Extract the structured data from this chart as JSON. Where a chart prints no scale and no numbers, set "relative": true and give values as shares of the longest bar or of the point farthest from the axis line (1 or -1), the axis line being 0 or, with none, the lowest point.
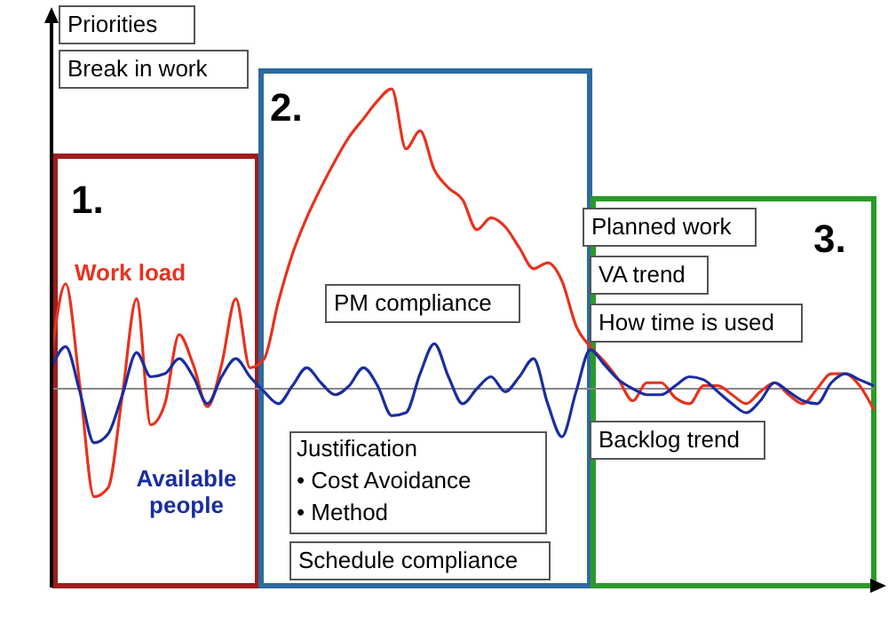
{
  "chart_data": {
    "type": "line",
    "relative": true,
    "categories": [
      null,
      null,
      null,
      null,
      null,
      null,
      null,
      null,
      null,
      null,
      null,
      null,
      null,
      null,
      null,
      null,
      null,
      null,
      null,
      null,
      null,
      null,
      null,
      null,
      null,
      null,
      null,
      null,
      null,
      null,
      null,
      null,
      null,
      null,
      null,
      null,
      null,
      null,
      null,
      null,
      null,
      null,
      null,
      null,
      null,
      null,
      null,
      null,
      null,
      null,
      null,
      null,
      null,
      null,
      null,
      null,
      null,
      null,
      null
    ],
    "series": [
      {
        "name": "Work load",
        "color": "#e8321e",
        "values": [
          0.11,
          0.35,
          0.01,
          -0.36,
          -0.33,
          -0.02,
          0.3,
          -0.12,
          -0.05,
          0.18,
          0.08,
          -0.06,
          0.08,
          0.3,
          0.07,
          0.1,
          0.29,
          0.45,
          0.57,
          0.67,
          0.76,
          0.84,
          0.9,
          0.96,
          1,
          0.8,
          0.86,
          0.73,
          0.67,
          0.63,
          0.53,
          0.57,
          0.54,
          0.47,
          0.4,
          0.42,
          0.36,
          0.21,
          0.14,
          0.09,
          0.03,
          -0.04,
          0.02,
          0.02,
          -0.03,
          -0.05,
          0.01,
          0.01,
          -0.02,
          -0.05,
          -0.01,
          0.02,
          -0.02,
          -0.05,
          0,
          0.05,
          0.05,
          0.01,
          -0.07
        ]
      },
      {
        "name": "Available people",
        "color": "#1a2da0",
        "values": [
          0.07,
          0.14,
          -0.01,
          -0.18,
          -0.15,
          -0.02,
          0.12,
          0.04,
          0.05,
          0.1,
          0.04,
          -0.05,
          0.04,
          0.1,
          0.04,
          -0.01,
          -0.05,
          0.01,
          0.07,
          0.02,
          -0.02,
          0.01,
          0.07,
          0.01,
          -0.09,
          -0.08,
          0.05,
          0.15,
          0.04,
          -0.05,
          0,
          0.04,
          -0.01,
          0.04,
          0.1,
          -0.05,
          -0.16,
          -0.01,
          0.13,
          0.08,
          0.03,
          0,
          -0.02,
          -0.02,
          0.01,
          0.04,
          0.03,
          -0.01,
          -0.05,
          -0.08,
          -0.04,
          0.02,
          -0.01,
          -0.04,
          -0.05,
          0.02,
          0.05,
          0.03,
          0.01
        ]
      }
    ],
    "ref_lines": [
      {
        "axis": "y",
        "value": 0,
        "color": "#888888"
      }
    ],
    "annotations": [
      "Priorities",
      "Break in work",
      "1.",
      "2.",
      "PM compliance",
      "Justification",
      "• Cost Avoidance",
      "• Method",
      "Schedule compliance",
      "Planned work",
      "VA trend",
      "How time is used",
      "3.",
      "Backlog trend"
    ]
  }
}
